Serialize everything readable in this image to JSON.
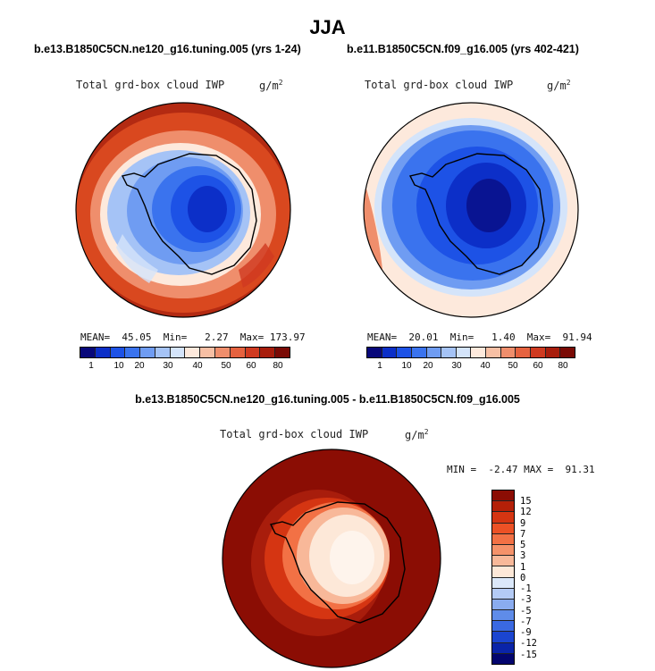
{
  "title": "JJA",
  "panels": [
    {
      "case_label": "b.e13.B1850C5CN.ne120_g16.tuning.005 (yrs 1-24)",
      "variable": "Total grd-box cloud IWP",
      "units_base": "g/m",
      "units_exp": "2",
      "stats": "MEAN=  45.05  Min=   2.27  Max= 173.97"
    },
    {
      "case_label": "b.e11.B1850C5CN.f09_g16.005 (yrs 402-421)",
      "variable": "Total grd-box cloud IWP",
      "units_base": "g/m",
      "units_exp": "2",
      "stats": "MEAN=  20.01  Min=   1.40  Max=  91.94"
    }
  ],
  "difference": {
    "label": "b.e13.B1850C5CN.ne120_g16.tuning.005 - b.e11.B1850C5CN.f09_g16.005",
    "variable": "Total grd-box cloud IWP",
    "units_base": "g/m",
    "units_exp": "2",
    "stats": "MIN =  -2.47 MAX =  91.31"
  },
  "colorbar": {
    "ticks": [
      "1",
      "10",
      "20",
      "30",
      "40",
      "50",
      "60",
      "80"
    ],
    "colors": [
      "#08087a",
      "#0c2fc8",
      "#1d52e6",
      "#3a73ee",
      "#6f9cf2",
      "#a5c3f6",
      "#d4e4fa",
      "#fde9dc",
      "#f7bfa4",
      "#ef8e6c",
      "#e5623f",
      "#cf3a20",
      "#a81d0c",
      "#7a0a05"
    ]
  },
  "diff_colorbar": {
    "labels": [
      "15",
      "12",
      "9",
      "7",
      "5",
      "3",
      "1",
      "0",
      "-1",
      "-3",
      "-5",
      "-7",
      "-9",
      "-12",
      "-15"
    ],
    "colors": [
      "#8b0d04",
      "#b42008",
      "#d53512",
      "#ec5125",
      "#f27145",
      "#f5926a",
      "#f8b899",
      "#fde8d8",
      "#dbe8fa",
      "#b4cbf5",
      "#8aacef",
      "#5f8ce9",
      "#3a69e2",
      "#1b45d0",
      "#0a24a8",
      "#03056e"
    ]
  }
}
